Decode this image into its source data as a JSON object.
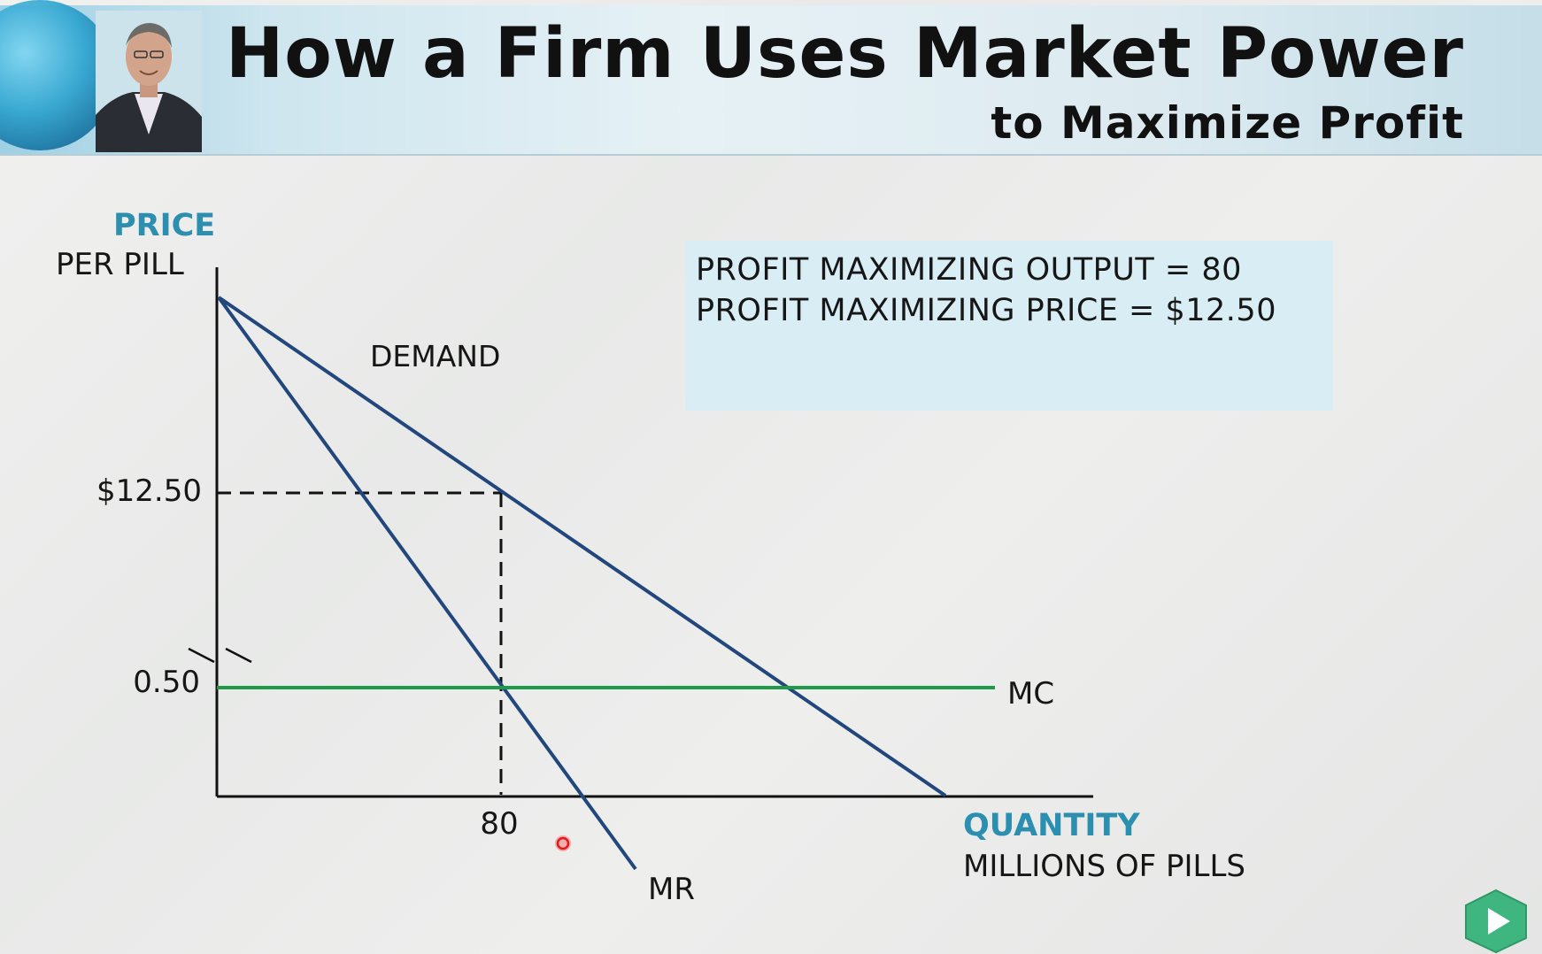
{
  "banner": {
    "title": "How a Firm Uses Market Power",
    "subtitle": "to Maximize Profit"
  },
  "result_box": {
    "line1": "PROFIT MAXIMIZING OUTPUT = 80",
    "line2": "PROFIT MAXIMIZING PRICE = $12.50"
  },
  "chart_data": {
    "type": "line",
    "y_axis": {
      "label_line1": "PRICE",
      "label_line2": "PER PILL",
      "axis_break": true
    },
    "x_axis": {
      "label_line1": "QUANTITY",
      "label_line2": "MILLIONS OF PILLS"
    },
    "y_ticks": [
      "$12.50",
      "0.50"
    ],
    "x_ticks": [
      "80"
    ],
    "series": [
      {
        "name": "DEMAND",
        "color": "#22477d"
      },
      {
        "name": "MR",
        "color": "#22477d"
      },
      {
        "name": "MC",
        "color": "#1f9a48",
        "value": 0.5
      }
    ],
    "profit_max_point": {
      "quantity": 80,
      "price": 12.5
    }
  },
  "colors": {
    "axis_label_accent": "#2d8fb0",
    "curve_blue": "#22477d",
    "mc_green": "#1f9a48",
    "result_box_bg": "#d9edf5",
    "play_button": "#3fb57f"
  },
  "icons": {
    "play": "play-icon",
    "cursor": "cursor-dot-icon"
  }
}
